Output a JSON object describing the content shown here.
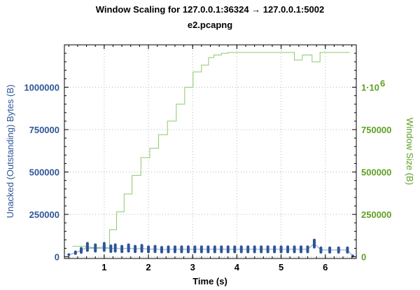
{
  "chart_data": {
    "type": "line",
    "title": "Window Scaling for 127.0.0.1:36324 → 127.0.0.1:5002",
    "subtitle": "e2.pcapng",
    "xlabel": "Time (s)",
    "ylabel_left": "Unacked (Outstanding) Bytes (B)",
    "ylabel_right": "Window Size (B)",
    "xlim": [
      0.1,
      6.7
    ],
    "ylim_left": [
      -10000,
      1250000
    ],
    "ylim_right": [
      -10000,
      1250000
    ],
    "x_ticks": [
      "1",
      "2",
      "3",
      "4",
      "5",
      "6"
    ],
    "y_ticks_left": [
      "0",
      "250000",
      "500000",
      "750000",
      "1000000"
    ],
    "y_ticks_right": [
      "0",
      "250000",
      "500000",
      "750000",
      "1·10"
    ],
    "y_tick_right_exponent": "6",
    "grid": true,
    "colors": {
      "unacked": "#2f5597",
      "window": "#8cc96a",
      "left_axis": "#2f5597",
      "right_axis": "#5fa024"
    },
    "series": [
      {
        "axis": "right",
        "style": "step",
        "x": [
          0.28,
          0.55,
          0.6,
          1.12,
          1.28,
          1.45,
          1.63,
          1.83,
          2.03,
          2.23,
          2.43,
          2.63,
          2.82,
          3.01,
          3.2,
          3.36,
          3.48,
          3.65,
          3.8,
          5.3,
          5.48,
          5.7,
          5.88,
          6.1,
          6.55
        ],
        "values": [
          62000,
          62000,
          50000,
          160000,
          265000,
          370000,
          480000,
          585000,
          640000,
          720000,
          800000,
          900000,
          1000000,
          1090000,
          1130000,
          1175000,
          1190000,
          1200000,
          1205000,
          1160000,
          1190000,
          1150000,
          1205000,
          1205000,
          1205000
        ]
      },
      {
        "axis": "left",
        "style": "scatter",
        "x": [
          0.2,
          0.35,
          0.48,
          0.62,
          0.8,
          1.0,
          1.15,
          1.25,
          1.4,
          1.55,
          1.7,
          1.85,
          2.0,
          2.15,
          2.3,
          2.45,
          2.6,
          2.75,
          2.9,
          3.05,
          3.2,
          3.35,
          3.5,
          3.65,
          3.8,
          3.95,
          4.1,
          4.25,
          4.4,
          4.55,
          4.7,
          4.85,
          5.0,
          5.15,
          5.3,
          5.45,
          5.6,
          5.75,
          5.9,
          6.1,
          6.3,
          6.5,
          6.62
        ],
        "values": [
          12000,
          24000,
          38000,
          58000,
          52000,
          58000,
          48000,
          52000,
          46000,
          52000,
          46000,
          50000,
          44000,
          46000,
          42000,
          44000,
          44000,
          44000,
          44000,
          44000,
          44000,
          44000,
          44000,
          44000,
          44000,
          44000,
          44000,
          44000,
          44000,
          44000,
          44000,
          44000,
          44000,
          44000,
          44000,
          44000,
          44000,
          78000,
          40000,
          40000,
          40000,
          40000,
          5000
        ]
      }
    ]
  }
}
